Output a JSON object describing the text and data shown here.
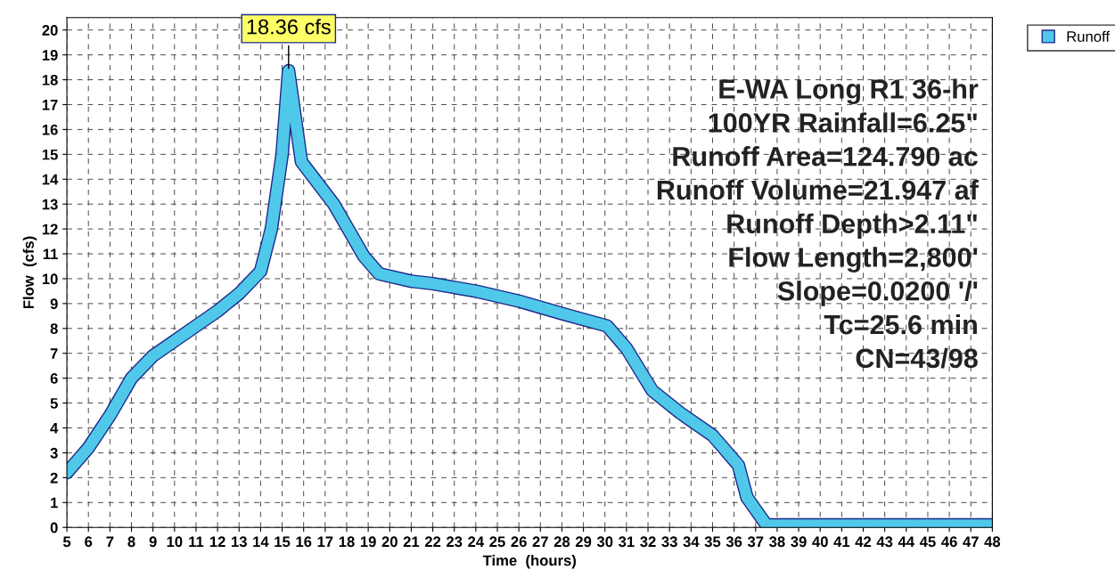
{
  "chart_data": {
    "type": "line",
    "xlabel": "Time  (hours)",
    "ylabel": "Flow  (cfs)",
    "x": [
      5,
      6,
      7,
      8,
      9,
      10,
      11,
      12,
      13,
      14,
      14.5,
      15,
      15.3,
      15.9,
      17.4,
      18.8,
      19.5,
      21,
      22,
      24,
      26,
      28,
      30.1,
      31,
      32.2,
      33.5,
      35,
      36.2,
      36.6,
      37.5,
      39,
      42,
      45,
      48
    ],
    "series": [
      {
        "name": "Runoff",
        "color": "#4fc8ea",
        "values": [
          2.2,
          3.2,
          4.5,
          6.0,
          6.9,
          7.5,
          8.1,
          8.7,
          9.4,
          10.3,
          12,
          15,
          18.36,
          14.7,
          13.0,
          10.9,
          10.2,
          9.9,
          9.8,
          9.5,
          9.1,
          8.6,
          8.1,
          7.2,
          5.5,
          4.6,
          3.7,
          2.5,
          1.2,
          0.1,
          0.1,
          0.1,
          0.1,
          0.1
        ]
      }
    ],
    "xlim": [
      5,
      48
    ],
    "xticks": [
      5,
      6,
      7,
      8,
      9,
      10,
      11,
      12,
      13,
      14,
      15,
      16,
      17,
      18,
      19,
      20,
      21,
      22,
      23,
      24,
      25,
      26,
      27,
      28,
      29,
      30,
      31,
      32,
      33,
      34,
      35,
      36,
      37,
      38,
      39,
      40,
      41,
      42,
      43,
      44,
      45,
      46,
      47,
      48
    ],
    "ylim": [
      0,
      20.5
    ],
    "yticks": [
      0,
      1,
      2,
      3,
      4,
      5,
      6,
      7,
      8,
      9,
      10,
      11,
      12,
      13,
      14,
      15,
      16,
      17,
      18,
      19,
      20
    ],
    "grid": true,
    "legend": "top right",
    "marker": "none",
    "line_style": "solid",
    "annotations": [
      {
        "text": "18.36 cfs",
        "x": 15.3,
        "y": 18.36
      },
      "E-WA Long R1 36-hr",
      "100YR Rainfall=6.25\"",
      "Runoff Area=124.790 ac",
      "Runoff Volume=21.947 af",
      "Runoff Depth>2.11\"",
      "Flow Length=2,800'",
      "Slope=0.0200 '/'",
      "Tc=25.6 min",
      "CN=43/98"
    ]
  }
}
